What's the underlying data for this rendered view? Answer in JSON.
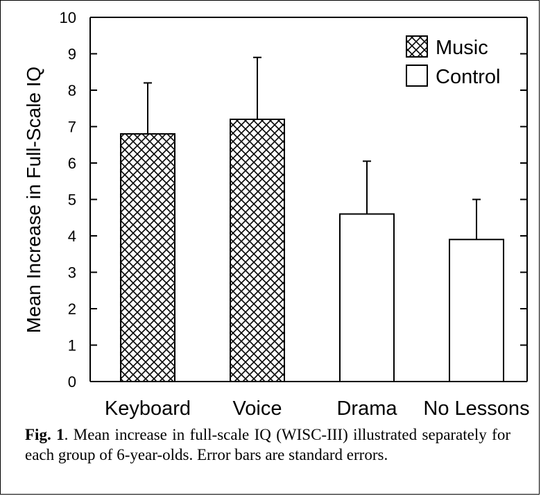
{
  "chart_data": {
    "type": "bar",
    "ylabel": "Mean Increase in Full-Scale IQ",
    "xlabel": "",
    "ylim": [
      0,
      10
    ],
    "yticks": [
      "0",
      "1",
      "2",
      "3",
      "4",
      "5",
      "6",
      "7",
      "8",
      "9",
      "10"
    ],
    "grid": false,
    "legend_position": "top-right",
    "categories": [
      "Keyboard",
      "Voice",
      "Drama",
      "No Lessons"
    ],
    "values": [
      6.8,
      7.2,
      4.6,
      3.9
    ],
    "errors": [
      1.4,
      1.7,
      1.45,
      1.1
    ],
    "groups": [
      "Music",
      "Music",
      "Control",
      "Control"
    ],
    "legend": [
      {
        "name": "Music",
        "pattern": "crosshatch"
      },
      {
        "name": "Control",
        "pattern": "none"
      }
    ]
  },
  "caption": {
    "label": "Fig. 1",
    "text": ". Mean increase in full-scale IQ (WISC-III) illustrated separately for each group of 6-year-olds. Error bars are standard errors."
  },
  "colors": {
    "ink": "#000000",
    "background": "#ffffff"
  }
}
